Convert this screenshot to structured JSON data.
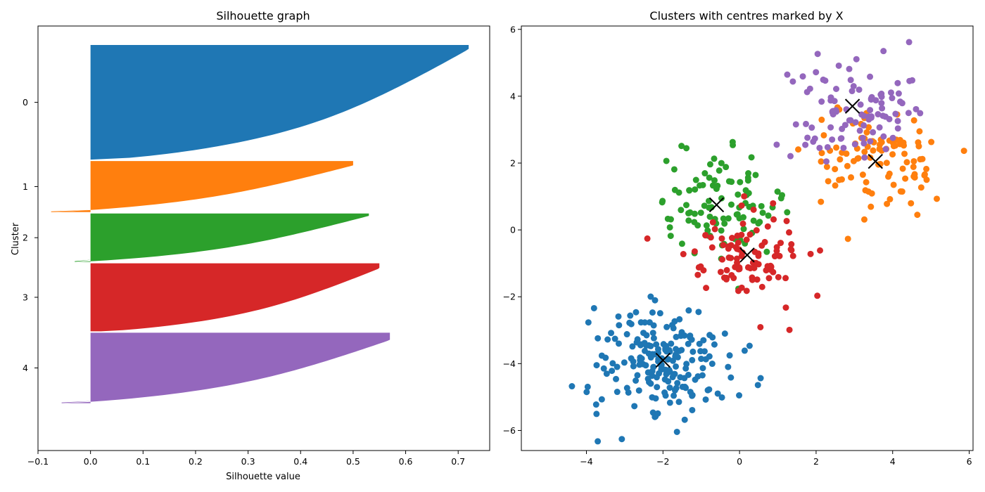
{
  "colors": {
    "blue": "#1f77b4",
    "orange": "#ff7f0e",
    "green": "#2ca02c",
    "red": "#d62728",
    "purple": "#9467bd",
    "centre_marker": "#000000"
  },
  "chart_data": [
    {
      "type": "bar",
      "orientation": "horizontal",
      "title": "Silhouette graph",
      "xlabel": "Silhouette value",
      "ylabel": "Cluster",
      "xlim": [
        -0.1,
        0.76
      ],
      "xticks": [
        -0.1,
        0.0,
        0.1,
        0.2,
        0.3,
        0.4,
        0.5,
        0.6,
        0.7
      ],
      "xtick_labels": [
        "−0.1",
        "0.0",
        "0.1",
        "0.2",
        "0.3",
        "0.4",
        "0.5",
        "0.6",
        "0.7"
      ],
      "grid": false,
      "clusters": [
        {
          "label": "0",
          "color": "#1f77b4",
          "size": 135,
          "max": 0.72,
          "min": 0.0,
          "mid": 0.44,
          "shape": 2.2
        },
        {
          "label": "1",
          "color": "#ff7f0e",
          "size": 60,
          "max": 0.5,
          "min": -0.075,
          "mid": 0.3,
          "shape": 1.6
        },
        {
          "label": "2",
          "color": "#2ca02c",
          "size": 57,
          "max": 0.53,
          "min": -0.03,
          "mid": 0.32,
          "shape": 1.6
        },
        {
          "label": "3",
          "color": "#d62728",
          "size": 80,
          "max": 0.55,
          "min": 0.02,
          "mid": 0.36,
          "shape": 1.8
        },
        {
          "label": "4",
          "color": "#9467bd",
          "size": 83,
          "max": 0.57,
          "min": -0.055,
          "mid": 0.36,
          "shape": 1.8
        }
      ]
    },
    {
      "type": "scatter",
      "title": "Clusters with centres marked by X",
      "xlim": [
        -5.7,
        6.1
      ],
      "ylim": [
        -6.6,
        6.1
      ],
      "xticks": [
        -4,
        -2,
        0,
        2,
        4,
        6
      ],
      "xtick_labels": [
        "−4",
        "−2",
        "0",
        "2",
        "4",
        "6"
      ],
      "yticks": [
        -6,
        -4,
        -2,
        0,
        2,
        4,
        6
      ],
      "ytick_labels": [
        "−6",
        "−4",
        "−2",
        "0",
        "2",
        "4",
        "6"
      ],
      "grid": false,
      "clusters": [
        {
          "label": "0",
          "color": "#1f77b4",
          "center": [
            -2.0,
            -3.9
          ],
          "spread": [
            0.9,
            0.85
          ],
          "n": 200
        },
        {
          "label": "1",
          "color": "#ff7f0e",
          "center": [
            3.55,
            2.05
          ],
          "spread": [
            0.85,
            0.75
          ],
          "n": 100
        },
        {
          "label": "2",
          "color": "#2ca02c",
          "center": [
            -0.6,
            0.75
          ],
          "spread": [
            0.8,
            0.75
          ],
          "n": 100
        },
        {
          "label": "3",
          "color": "#d62728",
          "center": [
            0.2,
            -0.75
          ],
          "spread": [
            0.75,
            0.7
          ],
          "n": 100
        },
        {
          "label": "4",
          "color": "#9467bd",
          "center": [
            2.95,
            3.7
          ],
          "spread": [
            0.8,
            0.75
          ],
          "n": 100
        }
      ],
      "centres": [
        [
          -2.0,
          -3.9
        ],
        [
          3.55,
          2.05
        ],
        [
          -0.6,
          0.75
        ],
        [
          0.2,
          -0.75
        ],
        [
          2.95,
          3.7
        ]
      ]
    }
  ]
}
